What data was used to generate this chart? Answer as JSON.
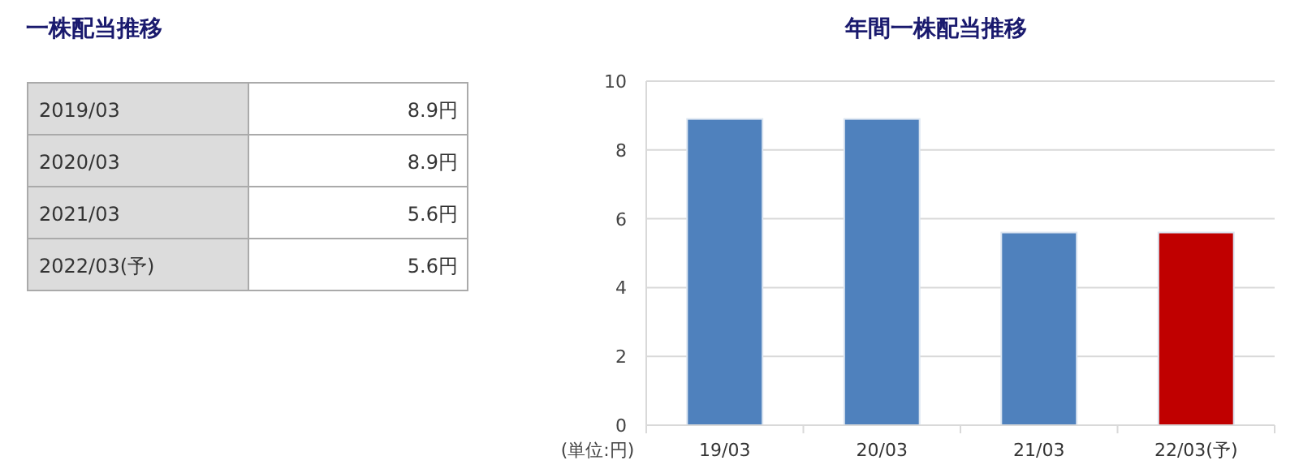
{
  "chart_data": [
    {
      "type": "other",
      "title": "一株配当推移",
      "categories": [
        "2019/03",
        "2020/03",
        "2021/03",
        "2022/03(予)"
      ],
      "value_labels": [
        "8.9円",
        "8.9円",
        "5.6円",
        "5.6円"
      ]
    },
    {
      "type": "bar",
      "title": "年間一株配当推移",
      "categories": [
        "19/03",
        "20/03",
        "21/03",
        "22/03(予)"
      ],
      "values": [
        8.9,
        8.9,
        5.6,
        5.6
      ],
      "colors": [
        "#4f81bd",
        "#4f81bd",
        "#4f81bd",
        "#c00000"
      ],
      "ylim": [
        0,
        10
      ],
      "yticks": [
        0,
        2,
        4,
        6,
        8,
        10
      ],
      "grid": "y",
      "annotations": [
        "(単位:円)"
      ]
    }
  ]
}
